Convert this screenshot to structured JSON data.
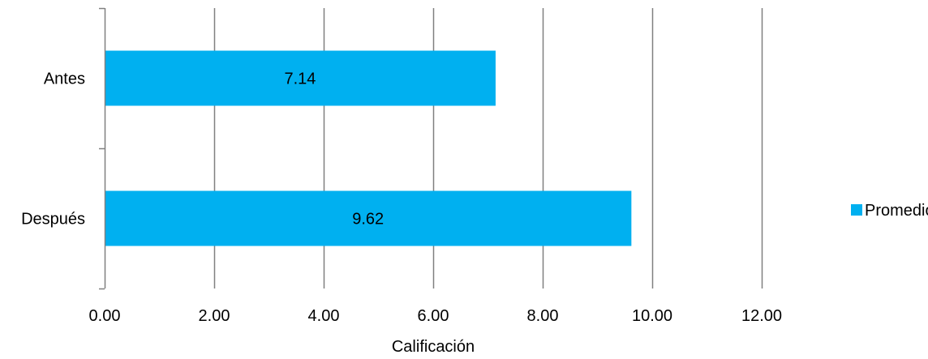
{
  "chart_data": {
    "type": "bar",
    "orientation": "horizontal",
    "categories": [
      "Antes",
      "Después"
    ],
    "series": [
      {
        "name": "Promedio",
        "values": [
          7.14,
          9.62
        ],
        "data_labels": [
          "7.14",
          "9.62"
        ],
        "color": "#00B0F0"
      }
    ],
    "xlabel": "Calificación",
    "ylabel": "",
    "xlim": [
      0,
      12
    ],
    "x_ticks": [
      0,
      2,
      4,
      6,
      8,
      10,
      12
    ],
    "x_tick_labels": [
      "0.00",
      "2.00",
      "4.00",
      "6.00",
      "8.00",
      "10.00",
      "12.00"
    ],
    "grid": "vertical",
    "gridline_color": "#808080",
    "legend": "right"
  }
}
